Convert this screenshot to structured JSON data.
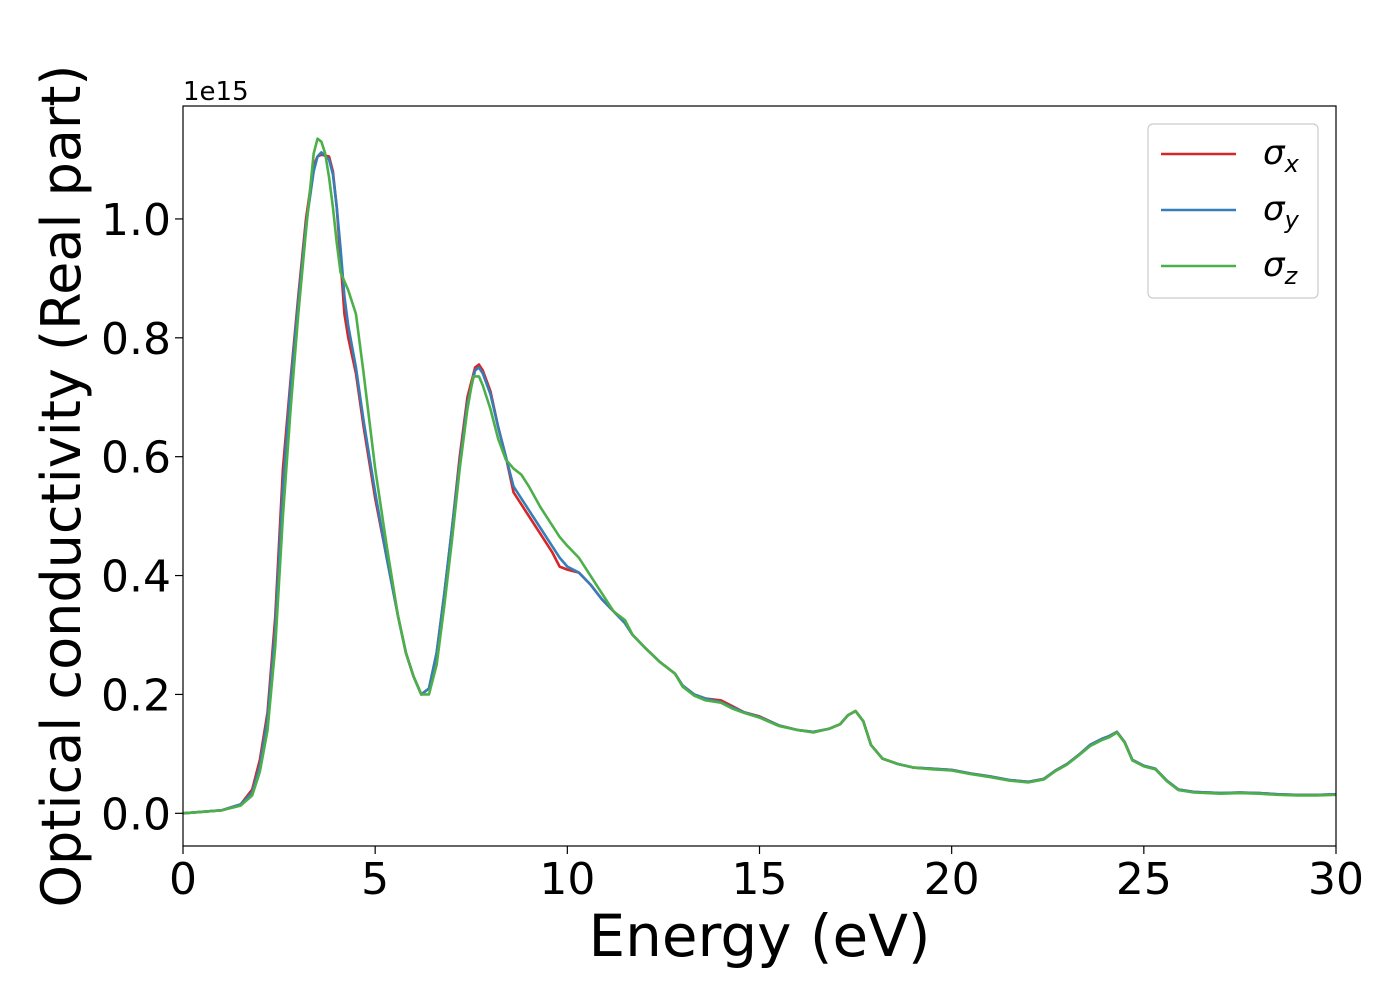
{
  "chart_data": {
    "type": "line",
    "xlabel": "Energy (eV)",
    "ylabel": "Optical conductivity (Real part)",
    "y_offset_label": "1e15",
    "xlim": [
      0,
      30
    ],
    "ylim": [
      -0.055,
      1.19
    ],
    "x_ticks": [
      0,
      5,
      10,
      15,
      20,
      25,
      30
    ],
    "x_tick_labels": [
      "0",
      "5",
      "10",
      "15",
      "20",
      "25",
      "30"
    ],
    "y_ticks": [
      0.0,
      0.2,
      0.4,
      0.6,
      0.8,
      1.0
    ],
    "y_tick_labels": [
      "0.0",
      "0.2",
      "0.4",
      "0.6",
      "0.8",
      "1.0"
    ],
    "grid": false,
    "legend_position": "top-right",
    "series": [
      {
        "name": "σx",
        "symbol": "σ",
        "subscript": "x",
        "color": "#d62728",
        "points": [
          [
            0,
            0.0
          ],
          [
            1,
            0.005
          ],
          [
            1.5,
            0.015
          ],
          [
            1.8,
            0.04
          ],
          [
            2,
            0.09
          ],
          [
            2.2,
            0.17
          ],
          [
            2.4,
            0.33
          ],
          [
            2.6,
            0.58
          ],
          [
            2.8,
            0.73
          ],
          [
            3,
            0.87
          ],
          [
            3.2,
            1.0
          ],
          [
            3.4,
            1.09
          ],
          [
            3.5,
            1.105
          ],
          [
            3.6,
            1.108
          ],
          [
            3.8,
            1.105
          ],
          [
            3.9,
            1.08
          ],
          [
            4,
            1.02
          ],
          [
            4.1,
            0.93
          ],
          [
            4.2,
            0.84
          ],
          [
            4.3,
            0.8
          ],
          [
            4.5,
            0.74
          ],
          [
            4.7,
            0.65
          ],
          [
            5,
            0.53
          ],
          [
            5.3,
            0.43
          ],
          [
            5.6,
            0.33
          ],
          [
            5.8,
            0.27
          ],
          [
            6,
            0.23
          ],
          [
            6.2,
            0.2
          ],
          [
            6.4,
            0.21
          ],
          [
            6.6,
            0.27
          ],
          [
            6.8,
            0.37
          ],
          [
            7,
            0.48
          ],
          [
            7.2,
            0.6
          ],
          [
            7.4,
            0.7
          ],
          [
            7.6,
            0.75
          ],
          [
            7.7,
            0.755
          ],
          [
            7.8,
            0.745
          ],
          [
            8,
            0.71
          ],
          [
            8.2,
            0.65
          ],
          [
            8.4,
            0.6
          ],
          [
            8.6,
            0.54
          ],
          [
            8.8,
            0.52
          ],
          [
            9,
            0.5
          ],
          [
            9.3,
            0.47
          ],
          [
            9.6,
            0.44
          ],
          [
            9.8,
            0.415
          ],
          [
            10,
            0.41
          ],
          [
            10.3,
            0.405
          ],
          [
            10.6,
            0.385
          ],
          [
            10.9,
            0.36
          ],
          [
            11.2,
            0.34
          ],
          [
            11.5,
            0.32
          ],
          [
            11.7,
            0.3
          ],
          [
            12,
            0.28
          ],
          [
            12.4,
            0.255
          ],
          [
            12.8,
            0.235
          ],
          [
            13,
            0.215
          ],
          [
            13.3,
            0.2
          ],
          [
            13.6,
            0.193
          ],
          [
            14,
            0.19
          ],
          [
            14.3,
            0.18
          ],
          [
            14.6,
            0.17
          ],
          [
            15,
            0.163
          ],
          [
            15.5,
            0.148
          ],
          [
            16,
            0.14
          ],
          [
            16.4,
            0.137
          ],
          [
            16.8,
            0.142
          ],
          [
            17.1,
            0.15
          ],
          [
            17.3,
            0.165
          ],
          [
            17.5,
            0.172
          ],
          [
            17.7,
            0.155
          ],
          [
            17.9,
            0.115
          ],
          [
            18.2,
            0.092
          ],
          [
            18.6,
            0.083
          ],
          [
            19,
            0.077
          ],
          [
            19.5,
            0.075
          ],
          [
            20,
            0.073
          ],
          [
            20.5,
            0.067
          ],
          [
            21,
            0.062
          ],
          [
            21.5,
            0.056
          ],
          [
            22,
            0.053
          ],
          [
            22.4,
            0.058
          ],
          [
            22.7,
            0.072
          ],
          [
            23,
            0.083
          ],
          [
            23.3,
            0.098
          ],
          [
            23.6,
            0.115
          ],
          [
            23.9,
            0.125
          ],
          [
            24.1,
            0.13
          ],
          [
            24.3,
            0.137
          ],
          [
            24.5,
            0.12
          ],
          [
            24.7,
            0.09
          ],
          [
            25,
            0.08
          ],
          [
            25.3,
            0.075
          ],
          [
            25.6,
            0.055
          ],
          [
            25.9,
            0.04
          ],
          [
            26.3,
            0.036
          ],
          [
            27,
            0.034
          ],
          [
            27.5,
            0.035
          ],
          [
            28,
            0.034
          ],
          [
            28.5,
            0.032
          ],
          [
            29,
            0.031
          ],
          [
            29.5,
            0.031
          ],
          [
            30,
            0.032
          ]
        ]
      },
      {
        "name": "σy",
        "symbol": "σ",
        "subscript": "y",
        "color": "#377eb8",
        "points": [
          [
            0,
            0.0
          ],
          [
            1,
            0.005
          ],
          [
            1.5,
            0.015
          ],
          [
            1.8,
            0.035
          ],
          [
            2,
            0.08
          ],
          [
            2.2,
            0.16
          ],
          [
            2.4,
            0.31
          ],
          [
            2.6,
            0.55
          ],
          [
            2.8,
            0.72
          ],
          [
            3,
            0.86
          ],
          [
            3.2,
            0.99
          ],
          [
            3.4,
            1.08
          ],
          [
            3.5,
            1.105
          ],
          [
            3.6,
            1.112
          ],
          [
            3.8,
            1.1
          ],
          [
            3.9,
            1.075
          ],
          [
            4,
            1.02
          ],
          [
            4.1,
            0.95
          ],
          [
            4.2,
            0.87
          ],
          [
            4.3,
            0.82
          ],
          [
            4.5,
            0.75
          ],
          [
            4.7,
            0.66
          ],
          [
            5,
            0.54
          ],
          [
            5.3,
            0.43
          ],
          [
            5.6,
            0.33
          ],
          [
            5.8,
            0.27
          ],
          [
            6,
            0.23
          ],
          [
            6.2,
            0.2
          ],
          [
            6.4,
            0.21
          ],
          [
            6.6,
            0.27
          ],
          [
            6.8,
            0.37
          ],
          [
            7,
            0.48
          ],
          [
            7.2,
            0.59
          ],
          [
            7.4,
            0.69
          ],
          [
            7.6,
            0.745
          ],
          [
            7.7,
            0.75
          ],
          [
            7.8,
            0.74
          ],
          [
            8,
            0.705
          ],
          [
            8.2,
            0.65
          ],
          [
            8.4,
            0.6
          ],
          [
            8.6,
            0.55
          ],
          [
            8.8,
            0.53
          ],
          [
            9,
            0.51
          ],
          [
            9.3,
            0.48
          ],
          [
            9.6,
            0.45
          ],
          [
            9.8,
            0.43
          ],
          [
            10,
            0.415
          ],
          [
            10.3,
            0.405
          ],
          [
            10.6,
            0.385
          ],
          [
            10.9,
            0.36
          ],
          [
            11.2,
            0.34
          ],
          [
            11.5,
            0.32
          ],
          [
            11.7,
            0.3
          ],
          [
            12,
            0.28
          ],
          [
            12.4,
            0.255
          ],
          [
            12.8,
            0.235
          ],
          [
            13,
            0.215
          ],
          [
            13.3,
            0.2
          ],
          [
            13.6,
            0.193
          ],
          [
            14,
            0.187
          ],
          [
            14.3,
            0.178
          ],
          [
            14.6,
            0.17
          ],
          [
            15,
            0.162
          ],
          [
            15.5,
            0.148
          ],
          [
            16,
            0.14
          ],
          [
            16.4,
            0.137
          ],
          [
            16.8,
            0.142
          ],
          [
            17.1,
            0.15
          ],
          [
            17.3,
            0.165
          ],
          [
            17.5,
            0.172
          ],
          [
            17.7,
            0.155
          ],
          [
            17.9,
            0.115
          ],
          [
            18.2,
            0.092
          ],
          [
            18.6,
            0.083
          ],
          [
            19,
            0.077
          ],
          [
            19.5,
            0.075
          ],
          [
            20,
            0.073
          ],
          [
            20.5,
            0.067
          ],
          [
            21,
            0.062
          ],
          [
            21.5,
            0.056
          ],
          [
            22,
            0.053
          ],
          [
            22.4,
            0.058
          ],
          [
            22.7,
            0.072
          ],
          [
            23,
            0.083
          ],
          [
            23.3,
            0.098
          ],
          [
            23.6,
            0.115
          ],
          [
            23.9,
            0.125
          ],
          [
            24.1,
            0.13
          ],
          [
            24.3,
            0.137
          ],
          [
            24.5,
            0.12
          ],
          [
            24.7,
            0.09
          ],
          [
            25,
            0.08
          ],
          [
            25.3,
            0.075
          ],
          [
            25.6,
            0.055
          ],
          [
            25.9,
            0.04
          ],
          [
            26.3,
            0.036
          ],
          [
            27,
            0.034
          ],
          [
            27.5,
            0.035
          ],
          [
            28,
            0.034
          ],
          [
            28.5,
            0.032
          ],
          [
            29,
            0.031
          ],
          [
            29.5,
            0.031
          ],
          [
            30,
            0.032
          ]
        ]
      },
      {
        "name": "σz",
        "symbol": "σ",
        "subscript": "z",
        "color": "#4daf4a",
        "points": [
          [
            0,
            0.0
          ],
          [
            1,
            0.005
          ],
          [
            1.5,
            0.013
          ],
          [
            1.8,
            0.03
          ],
          [
            2,
            0.07
          ],
          [
            2.2,
            0.14
          ],
          [
            2.4,
            0.28
          ],
          [
            2.6,
            0.5
          ],
          [
            2.8,
            0.68
          ],
          [
            3,
            0.84
          ],
          [
            3.2,
            0.98
          ],
          [
            3.4,
            1.11
          ],
          [
            3.5,
            1.135
          ],
          [
            3.6,
            1.13
          ],
          [
            3.7,
            1.11
          ],
          [
            3.8,
            1.07
          ],
          [
            3.9,
            1.02
          ],
          [
            4,
            0.96
          ],
          [
            4.1,
            0.91
          ],
          [
            4.3,
            0.88
          ],
          [
            4.5,
            0.84
          ],
          [
            4.7,
            0.74
          ],
          [
            5,
            0.58
          ],
          [
            5.3,
            0.45
          ],
          [
            5.6,
            0.33
          ],
          [
            5.8,
            0.27
          ],
          [
            6,
            0.23
          ],
          [
            6.2,
            0.2
          ],
          [
            6.4,
            0.2
          ],
          [
            6.6,
            0.25
          ],
          [
            6.8,
            0.35
          ],
          [
            7,
            0.46
          ],
          [
            7.2,
            0.58
          ],
          [
            7.4,
            0.68
          ],
          [
            7.55,
            0.735
          ],
          [
            7.7,
            0.735
          ],
          [
            7.8,
            0.72
          ],
          [
            8,
            0.68
          ],
          [
            8.2,
            0.63
          ],
          [
            8.4,
            0.595
          ],
          [
            8.6,
            0.58
          ],
          [
            8.8,
            0.57
          ],
          [
            9,
            0.55
          ],
          [
            9.3,
            0.515
          ],
          [
            9.6,
            0.485
          ],
          [
            9.8,
            0.465
          ],
          [
            10,
            0.45
          ],
          [
            10.3,
            0.43
          ],
          [
            10.6,
            0.4
          ],
          [
            10.9,
            0.37
          ],
          [
            11.2,
            0.34
          ],
          [
            11.5,
            0.325
          ],
          [
            11.7,
            0.3
          ],
          [
            12,
            0.28
          ],
          [
            12.4,
            0.255
          ],
          [
            12.8,
            0.235
          ],
          [
            13,
            0.213
          ],
          [
            13.3,
            0.198
          ],
          [
            13.6,
            0.19
          ],
          [
            14,
            0.186
          ],
          [
            14.3,
            0.176
          ],
          [
            14.6,
            0.169
          ],
          [
            15,
            0.161
          ],
          [
            15.5,
            0.147
          ],
          [
            16,
            0.14
          ],
          [
            16.4,
            0.136
          ],
          [
            16.8,
            0.142
          ],
          [
            17.1,
            0.15
          ],
          [
            17.3,
            0.165
          ],
          [
            17.5,
            0.172
          ],
          [
            17.7,
            0.155
          ],
          [
            17.9,
            0.115
          ],
          [
            18.2,
            0.092
          ],
          [
            18.6,
            0.083
          ],
          [
            19,
            0.077
          ],
          [
            19.5,
            0.074
          ],
          [
            20,
            0.072
          ],
          [
            20.5,
            0.066
          ],
          [
            21,
            0.061
          ],
          [
            21.5,
            0.055
          ],
          [
            22,
            0.052
          ],
          [
            22.4,
            0.057
          ],
          [
            22.7,
            0.071
          ],
          [
            23,
            0.082
          ],
          [
            23.3,
            0.097
          ],
          [
            23.6,
            0.113
          ],
          [
            23.9,
            0.123
          ],
          [
            24.1,
            0.128
          ],
          [
            24.3,
            0.136
          ],
          [
            24.5,
            0.119
          ],
          [
            24.7,
            0.089
          ],
          [
            25,
            0.079
          ],
          [
            25.3,
            0.074
          ],
          [
            25.6,
            0.054
          ],
          [
            25.9,
            0.039
          ],
          [
            26.3,
            0.035
          ],
          [
            27,
            0.033
          ],
          [
            27.5,
            0.034
          ],
          [
            28,
            0.033
          ],
          [
            28.5,
            0.031
          ],
          [
            29,
            0.03
          ],
          [
            29.5,
            0.03
          ],
          [
            30,
            0.031
          ]
        ]
      }
    ]
  }
}
